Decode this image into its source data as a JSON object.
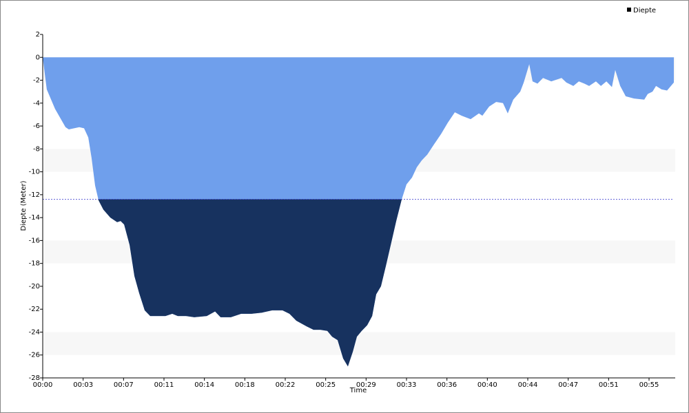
{
  "chart_data": {
    "type": "area",
    "y_label": "Diepte (Meter)",
    "x_label": "Time",
    "legend_position": "upper right",
    "threshold": -12.4,
    "threshold_color": "#3333cc",
    "below_color": "#17325f",
    "series": [
      {
        "name": "Diepte",
        "color": "#6f9fec",
        "x": [
          0,
          22,
          67,
          124,
          142,
          199,
          225,
          248,
          266,
          285,
          304,
          330,
          368,
          405,
          424,
          443,
          473,
          499,
          525,
          555,
          585,
          630,
          668,
          705,
          735,
          780,
          825,
          893,
          938,
          968,
          1024,
          1080,
          1136,
          1193,
          1249,
          1305,
          1343,
          1380,
          1436,
          1474,
          1511,
          1549,
          1575,
          1605,
          1635,
          1661,
          1688,
          1710,
          1736,
          1766,
          1793,
          1815,
          1841,
          1868,
          1894,
          1924,
          1954,
          1980,
          2010,
          2036,
          2063,
          2093,
          2130,
          2168,
          2205,
          2243,
          2280,
          2329,
          2374,
          2393,
          2430,
          2468,
          2505,
          2531,
          2561,
          2599,
          2618,
          2648,
          2666,
          2693,
          2723,
          2768,
          2824,
          2850,
          2888,
          2918,
          2948,
          2974,
          3011,
          3038,
          3068,
          3098,
          3116,
          3143,
          3173,
          3218,
          3274,
          3293,
          3319,
          3338,
          3368,
          3398,
          3435
        ],
        "values": [
          0,
          -2.8,
          -4.5,
          -6.1,
          -6.3,
          -6.1,
          -6.2,
          -7.0,
          -8.8,
          -11.2,
          -12.5,
          -13.3,
          -14.0,
          -14.4,
          -14.3,
          -14.6,
          -16.4,
          -19.1,
          -20.6,
          -22.1,
          -22.6,
          -22.6,
          -22.6,
          -22.4,
          -22.6,
          -22.6,
          -22.7,
          -22.6,
          -22.2,
          -22.7,
          -22.7,
          -22.4,
          -22.4,
          -22.3,
          -22.1,
          -22.1,
          -22.4,
          -23.0,
          -23.5,
          -23.8,
          -23.8,
          -23.9,
          -24.4,
          -24.7,
          -26.3,
          -27.0,
          -25.7,
          -24.4,
          -23.9,
          -23.4,
          -22.6,
          -20.7,
          -20.0,
          -18.2,
          -16.4,
          -14.3,
          -12.4,
          -11.1,
          -10.5,
          -9.6,
          -9.0,
          -8.5,
          -7.6,
          -6.7,
          -5.7,
          -4.8,
          -5.1,
          -5.4,
          -4.9,
          -5.1,
          -4.3,
          -3.9,
          -4.0,
          -4.9,
          -3.7,
          -3.0,
          -2.2,
          -0.6,
          -2.1,
          -2.3,
          -1.8,
          -2.1,
          -1.8,
          -2.2,
          -2.5,
          -2.1,
          -2.3,
          -2.5,
          -2.1,
          -2.5,
          -2.1,
          -2.6,
          -1.1,
          -2.5,
          -3.4,
          -3.6,
          -3.7,
          -3.2,
          -3.0,
          -2.5,
          -2.8,
          -2.9,
          -2.2
        ]
      }
    ],
    "xlim": [
      0,
      3435
    ],
    "xticks": [
      {
        "value": 0,
        "label": "00:00"
      },
      {
        "value": 220,
        "label": "00:03"
      },
      {
        "value": 440,
        "label": "00:07"
      },
      {
        "value": 660,
        "label": "00:11"
      },
      {
        "value": 880,
        "label": "00:14"
      },
      {
        "value": 1100,
        "label": "00:18"
      },
      {
        "value": 1320,
        "label": "00:22"
      },
      {
        "value": 1540,
        "label": "00:25"
      },
      {
        "value": 1760,
        "label": "00:29"
      },
      {
        "value": 1980,
        "label": "00:33"
      },
      {
        "value": 2200,
        "label": "00:36"
      },
      {
        "value": 2420,
        "label": "00:40"
      },
      {
        "value": 2640,
        "label": "00:44"
      },
      {
        "value": 2860,
        "label": "00:47"
      },
      {
        "value": 3080,
        "label": "00:51"
      },
      {
        "value": 3300,
        "label": "00:55"
      }
    ],
    "ylim": [
      -28,
      2
    ],
    "yticks": [
      -28,
      -26,
      -24,
      -22,
      -20,
      -18,
      -16,
      -14,
      -12,
      -10,
      -8,
      -6,
      -4,
      -2,
      0,
      2
    ],
    "grid": true
  }
}
